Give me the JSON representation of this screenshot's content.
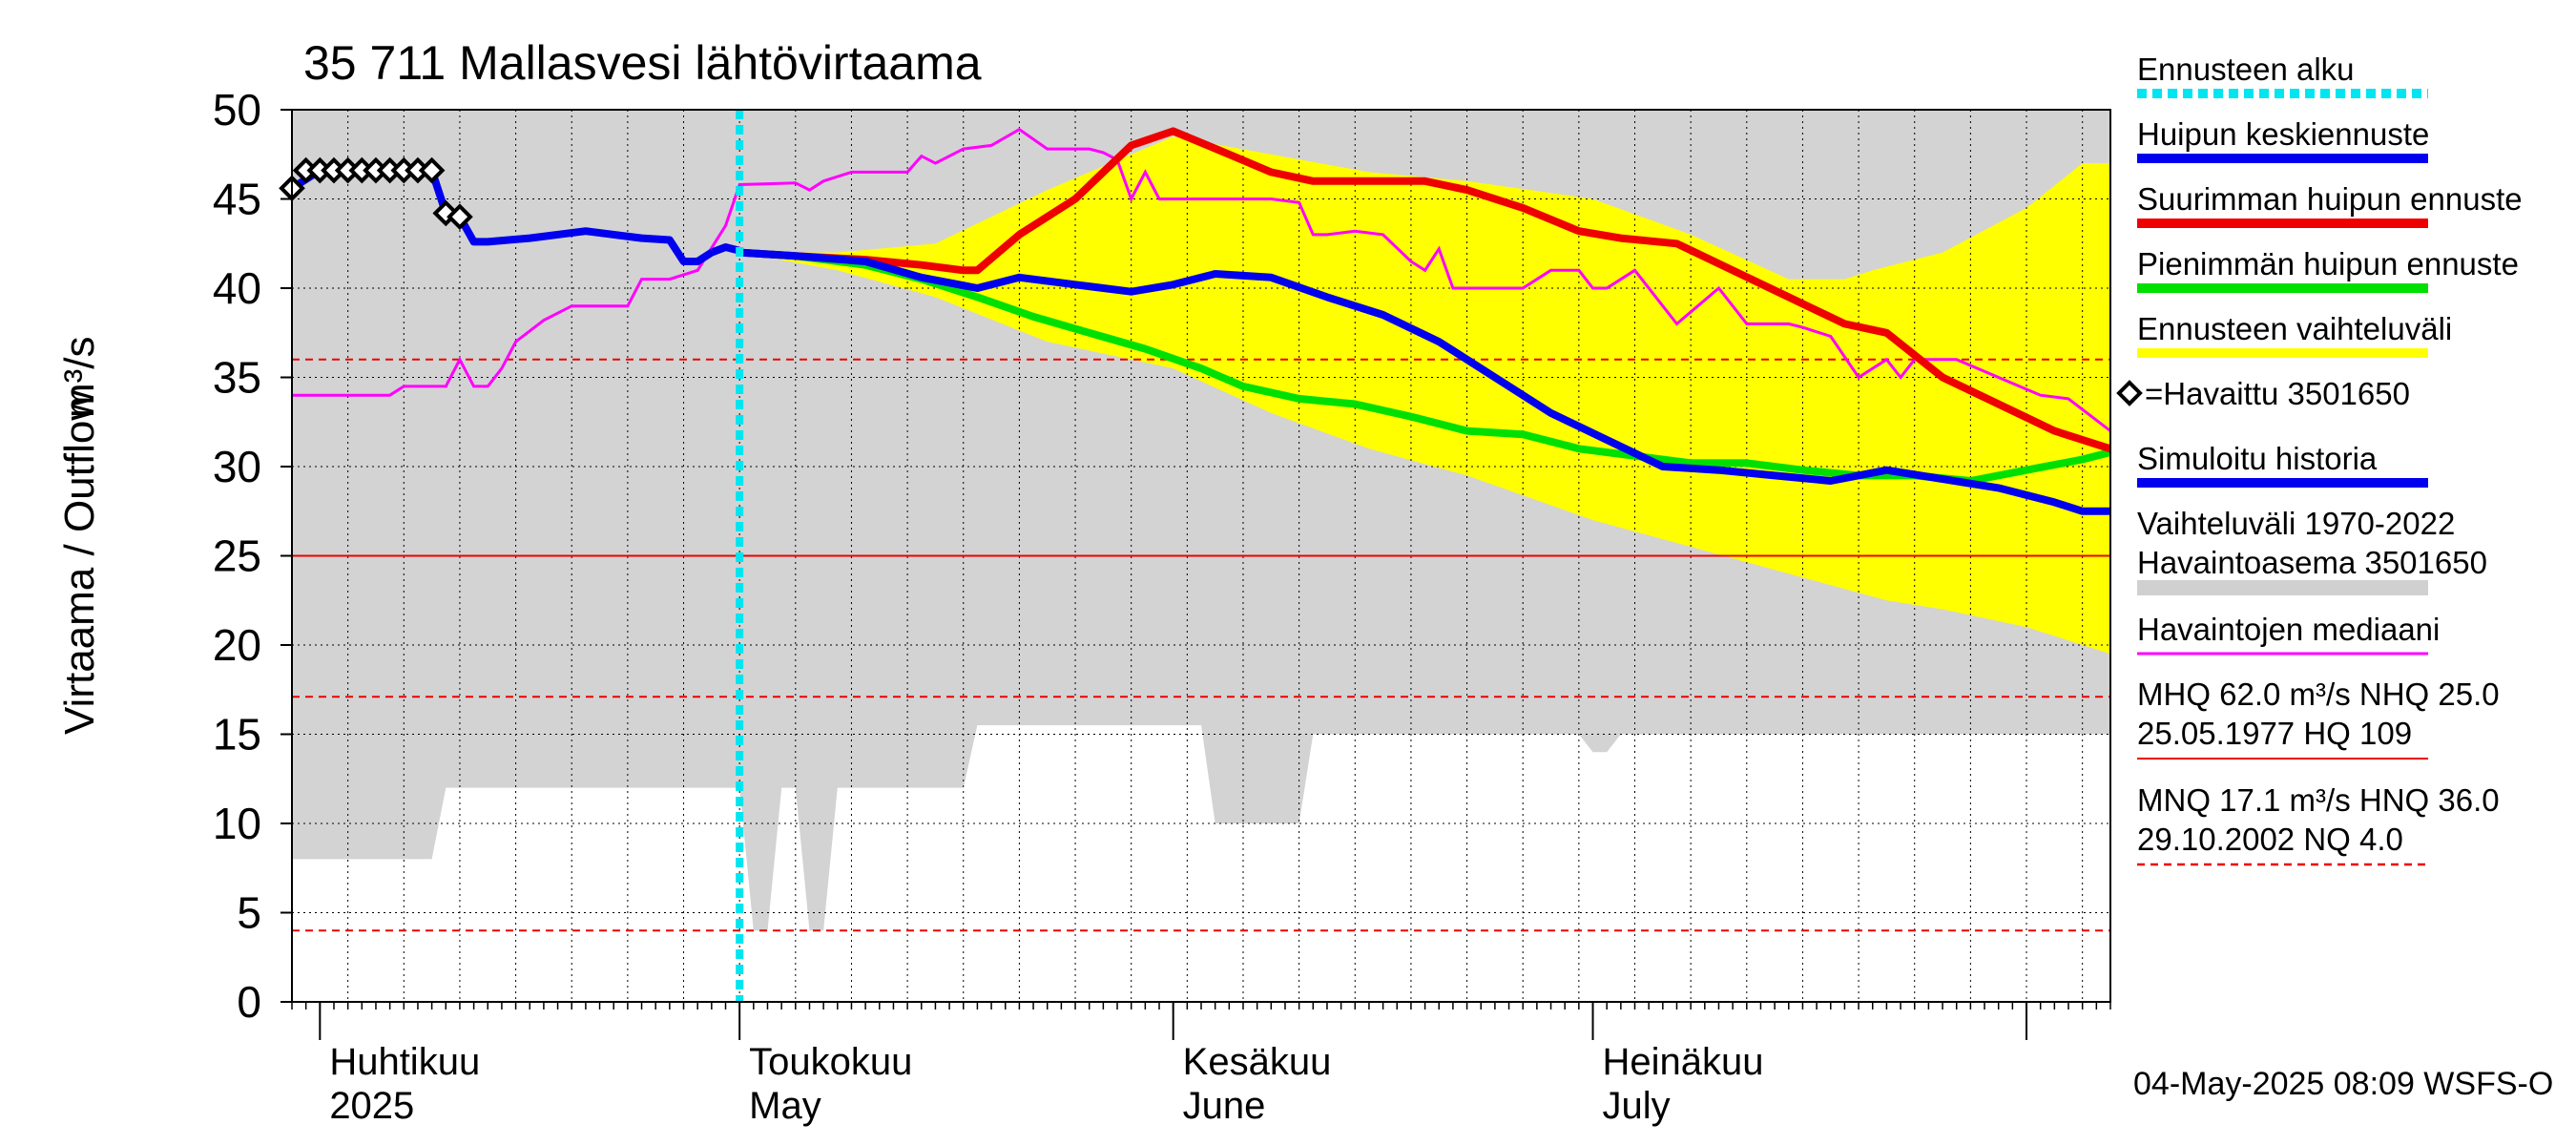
{
  "chart_data": {
    "type": "line",
    "title": "35 711 Mallasvesi lähtövirtaama",
    "ylabel_left": "Virtaama / Outflow",
    "ylabel_right": "m³/s",
    "ylim": [
      0,
      50
    ],
    "yticks": [
      0,
      5,
      10,
      15,
      20,
      25,
      30,
      35,
      40,
      45,
      50
    ],
    "xlim": [
      "2025-03-30",
      "2025-08-07"
    ],
    "month_labels": [
      {
        "date": "2025-04-01",
        "fi": "Huhtikuu",
        "en": "2025"
      },
      {
        "date": "2025-05-01",
        "fi": "Toukokuu",
        "en": "May"
      },
      {
        "date": "2025-06-01",
        "fi": "Kesäkuu",
        "en": "June"
      },
      {
        "date": "2025-07-01",
        "fi": "Heinäkuu",
        "en": "July"
      }
    ],
    "forecast_start": "2025-05-01",
    "footer": "04-May-2025 08:09 WSFS-O",
    "legend": [
      {
        "label": "Ennusteen alku",
        "color": "#00e5f0",
        "style": "dotted",
        "key": "forecast_start"
      },
      {
        "label": "Huipun keskiennuste",
        "color": "#0000ee",
        "style": "thick",
        "key": "mean"
      },
      {
        "label": "Suurimman huipun ennuste",
        "color": "#ee0000",
        "style": "thick",
        "key": "max"
      },
      {
        "label": "Pienimmän huipun ennuste",
        "color": "#00e000",
        "style": "thick",
        "key": "min"
      },
      {
        "label": "Ennusteen vaihteluväli",
        "color": "#ffff00",
        "style": "thick",
        "key": "range"
      },
      {
        "label": "=Havaittu 3501650",
        "color": "#000000",
        "style": "marker",
        "key": "observed"
      },
      {
        "label": "Simuloitu historia",
        "color": "#0000ee",
        "style": "thick",
        "key": "simulated"
      },
      {
        "label": "Vaihteluväli 1970-2022",
        "label2": " Havaintoasema 3501650",
        "color": "#d0d0d0",
        "style": "thick",
        "key": "hist_range"
      },
      {
        "label": "Havaintojen mediaani",
        "color": "#ff00ff",
        "style": "thin",
        "key": "median"
      },
      {
        "label": "MHQ 62.0 m³/s NHQ 25.0",
        "label2": "25.05.1977 HQ  109",
        "color": "#ee0000",
        "style": "solid-thin",
        "key": "nhq"
      },
      {
        "label": "MNQ 17.1 m³/s HNQ 36.0",
        "label2": "29.10.2002 NQ  4.0",
        "color": "#ee0000",
        "style": "dashed",
        "key": "mnq"
      }
    ],
    "reference_lines": [
      {
        "name": "NHQ",
        "value": 25.0,
        "style": "solid"
      },
      {
        "name": "HNQ",
        "value": 36.0,
        "style": "dashed"
      },
      {
        "name": "MNQ",
        "value": 17.1,
        "style": "dashed"
      },
      {
        "name": "NQ",
        "value": 4.0,
        "style": "dashed"
      }
    ],
    "series": {
      "hist_range_upper": {
        "x": [
          "2025-03-30",
          "2025-08-01",
          "2025-08-07"
        ],
        "y": [
          50,
          50,
          50
        ]
      },
      "hist_range_lower": {
        "x": [
          "2025-03-30",
          "2025-04-09",
          "2025-04-10",
          "2025-05-01",
          "2025-05-02",
          "2025-05-03",
          "2025-05-04",
          "2025-05-05",
          "2025-05-06",
          "2025-05-07",
          "2025-05-08",
          "2025-05-09",
          "2025-05-10",
          "2025-05-11",
          "2025-05-12",
          "2025-05-13",
          "2025-05-14",
          "2025-05-15",
          "2025-05-16",
          "2025-05-17",
          "2025-05-18",
          "2025-05-19",
          "2025-05-22",
          "2025-05-23",
          "2025-05-24",
          "2025-05-25",
          "2025-05-26",
          "2025-05-27",
          "2025-05-28",
          "2025-05-29",
          "2025-05-30",
          "2025-06-01",
          "2025-06-02",
          "2025-06-03",
          "2025-06-04",
          "2025-06-06",
          "2025-06-07",
          "2025-06-08",
          "2025-06-10",
          "2025-06-11",
          "2025-06-30",
          "2025-07-01",
          "2025-07-02",
          "2025-07-03",
          "2025-07-19",
          "2025-07-20",
          "2025-07-21",
          "2025-08-07"
        ],
        "y": [
          8,
          8,
          12,
          12,
          4,
          4,
          12,
          12,
          4,
          4,
          12,
          12,
          12,
          12,
          12,
          12,
          12,
          12,
          12,
          12,
          15.5,
          15.5,
          15.5,
          15.5,
          15.5,
          15.5,
          15.5,
          15.5,
          15.5,
          15.5,
          15.5,
          15.5,
          15.5,
          15.5,
          10,
          10,
          10,
          10,
          10,
          15,
          15,
          14,
          14,
          15,
          15,
          15,
          15,
          15
        ]
      },
      "range_upper": {
        "x": [
          "2025-05-01",
          "2025-05-08",
          "2025-05-15",
          "2025-05-23",
          "2025-06-01",
          "2025-06-08",
          "2025-06-15",
          "2025-06-22",
          "2025-07-01",
          "2025-07-08",
          "2025-07-15",
          "2025-07-19",
          "2025-07-21",
          "2025-07-26",
          "2025-08-01",
          "2025-08-05",
          "2025-08-07"
        ],
        "y": [
          42,
          42,
          42.5,
          45.5,
          48.5,
          47.5,
          46.5,
          46,
          45,
          43,
          40.5,
          40.5,
          41,
          42,
          44.5,
          47,
          47
        ]
      },
      "range_lower": {
        "x": [
          "2025-05-01",
          "2025-05-08",
          "2025-05-15",
          "2025-05-23",
          "2025-06-01",
          "2025-06-08",
          "2025-06-15",
          "2025-06-22",
          "2025-07-01",
          "2025-07-08",
          "2025-07-15",
          "2025-07-22",
          "2025-07-26",
          "2025-08-01",
          "2025-08-07"
        ],
        "y": [
          42,
          41,
          39.5,
          37,
          35.5,
          33,
          31,
          29.5,
          27,
          25.5,
          24,
          22.5,
          22,
          21,
          19.5
        ]
      },
      "max": {
        "x": [
          "2025-05-01",
          "2025-05-05",
          "2025-05-10",
          "2025-05-14",
          "2025-05-17",
          "2025-05-18",
          "2025-05-21",
          "2025-05-25",
          "2025-05-29",
          "2025-06-01",
          "2025-06-05",
          "2025-06-08",
          "2025-06-11",
          "2025-06-14",
          "2025-06-19",
          "2025-06-22",
          "2025-06-26",
          "2025-06-30",
          "2025-07-03",
          "2025-07-07",
          "2025-07-11",
          "2025-07-15",
          "2025-07-19",
          "2025-07-22",
          "2025-07-26",
          "2025-07-30",
          "2025-08-03",
          "2025-08-07"
        ],
        "y": [
          42,
          41.8,
          41.6,
          41.3,
          41,
          41,
          43,
          45,
          48,
          48.8,
          47.5,
          46.5,
          46,
          46,
          46,
          45.5,
          44.5,
          43.2,
          42.8,
          42.5,
          41,
          39.5,
          38,
          37.5,
          35,
          33.5,
          32,
          31
        ]
      },
      "mean": {
        "x": [
          "2025-05-01",
          "2025-05-05",
          "2025-05-10",
          "2025-05-14",
          "2025-05-18",
          "2025-05-21",
          "2025-05-25",
          "2025-05-29",
          "2025-06-01",
          "2025-06-04",
          "2025-06-08",
          "2025-06-12",
          "2025-06-16",
          "2025-06-20",
          "2025-06-24",
          "2025-06-28",
          "2025-07-02",
          "2025-07-06",
          "2025-07-10",
          "2025-07-14",
          "2025-07-18",
          "2025-07-22",
          "2025-07-26",
          "2025-07-30",
          "2025-08-03",
          "2025-08-05",
          "2025-08-07"
        ],
        "y": [
          42,
          41.8,
          41.5,
          40.6,
          40,
          40.6,
          40.2,
          39.8,
          40.2,
          40.8,
          40.6,
          39.5,
          38.5,
          37,
          35,
          33,
          31.5,
          30,
          29.8,
          29.5,
          29.2,
          29.8,
          29.3,
          28.8,
          28,
          27.5,
          27.5
        ]
      },
      "min": {
        "x": [
          "2025-05-01",
          "2025-05-05",
          "2025-05-10",
          "2025-05-14",
          "2025-05-18",
          "2025-05-22",
          "2025-05-26",
          "2025-05-30",
          "2025-06-03",
          "2025-06-06",
          "2025-06-10",
          "2025-06-14",
          "2025-06-18",
          "2025-06-22",
          "2025-06-26",
          "2025-06-30",
          "2025-07-04",
          "2025-07-08",
          "2025-07-12",
          "2025-07-16",
          "2025-07-20",
          "2025-07-24",
          "2025-07-28",
          "2025-08-01",
          "2025-08-05",
          "2025-08-07"
        ],
        "y": [
          42,
          41.8,
          41.3,
          40.5,
          39.5,
          38.4,
          37.5,
          36.6,
          35.5,
          34.5,
          33.8,
          33.5,
          32.8,
          32,
          31.8,
          31,
          30.6,
          30.2,
          30.2,
          29.8,
          29.5,
          29.5,
          29.2,
          29.8,
          30.4,
          30.8
        ]
      },
      "simulated": {
        "x": [
          "2025-03-30",
          "2025-04-01",
          "2025-04-04",
          "2025-04-07",
          "2025-04-09",
          "2025-04-10",
          "2025-04-11",
          "2025-04-12",
          "2025-04-13",
          "2025-04-16",
          "2025-04-20",
          "2025-04-24",
          "2025-04-26",
          "2025-04-27",
          "2025-04-28",
          "2025-04-29",
          "2025-04-30",
          "2025-05-01"
        ],
        "y": [
          45.6,
          46.6,
          46.6,
          46.6,
          46.6,
          44.2,
          44,
          42.6,
          42.6,
          42.8,
          43.2,
          42.8,
          42.7,
          41.5,
          41.5,
          42,
          42.3,
          42.1
        ]
      },
      "observed": {
        "x": [
          "2025-03-30",
          "2025-03-31",
          "2025-04-01",
          "2025-04-02",
          "2025-04-03",
          "2025-04-04",
          "2025-04-05",
          "2025-04-06",
          "2025-04-07",
          "2025-04-08",
          "2025-04-09",
          "2025-04-10",
          "2025-04-11"
        ],
        "y": [
          45.6,
          46.6,
          46.6,
          46.6,
          46.6,
          46.6,
          46.6,
          46.6,
          46.6,
          46.6,
          46.6,
          44.2,
          44
        ]
      },
      "median": {
        "x": [
          "2025-03-30",
          "2025-04-06",
          "2025-04-07",
          "2025-04-10",
          "2025-04-11",
          "2025-04-12",
          "2025-04-13",
          "2025-04-14",
          "2025-04-15",
          "2025-04-17",
          "2025-04-19",
          "2025-04-23",
          "2025-04-24",
          "2025-04-26",
          "2025-04-28",
          "2025-04-30",
          "2025-05-01",
          "2025-05-05",
          "2025-05-06",
          "2025-05-07",
          "2025-05-09",
          "2025-05-13",
          "2025-05-14",
          "2025-05-15",
          "2025-05-17",
          "2025-05-19",
          "2025-05-21",
          "2025-05-23",
          "2025-05-26",
          "2025-05-27",
          "2025-05-28",
          "2025-05-29",
          "2025-05-30",
          "2025-05-31",
          "2025-06-02",
          "2025-06-05",
          "2025-06-08",
          "2025-06-10",
          "2025-06-11",
          "2025-06-12",
          "2025-06-14",
          "2025-06-16",
          "2025-06-18",
          "2025-06-19",
          "2025-06-20",
          "2025-06-21",
          "2025-06-24",
          "2025-06-26",
          "2025-06-28",
          "2025-06-30",
          "2025-07-01",
          "2025-07-02",
          "2025-07-04",
          "2025-07-07",
          "2025-07-10",
          "2025-07-12",
          "2025-07-13",
          "2025-07-14",
          "2025-07-15",
          "2025-07-16",
          "2025-07-18",
          "2025-07-20",
          "2025-07-22",
          "2025-07-23",
          "2025-07-24",
          "2025-07-27",
          "2025-07-30",
          "2025-08-02",
          "2025-08-04",
          "2025-08-07"
        ],
        "y": [
          34,
          34,
          34.5,
          34.5,
          36,
          34.5,
          34.5,
          35.5,
          37,
          38.2,
          39,
          39,
          40.5,
          40.5,
          41,
          43.5,
          45.8,
          45.9,
          45.5,
          46,
          46.5,
          46.5,
          47.4,
          47,
          47.8,
          48,
          48.9,
          47.8,
          47.8,
          47.6,
          47.2,
          45,
          46.5,
          45,
          45,
          45,
          45,
          44.8,
          43,
          43,
          43.2,
          43,
          41.5,
          41,
          42.2,
          40,
          40,
          40,
          41,
          41,
          40,
          40,
          41,
          38,
          40,
          38,
          38,
          38,
          38,
          37.8,
          37.3,
          35,
          36,
          35,
          36,
          36,
          35,
          34,
          33.8,
          32
        ]
      }
    }
  }
}
